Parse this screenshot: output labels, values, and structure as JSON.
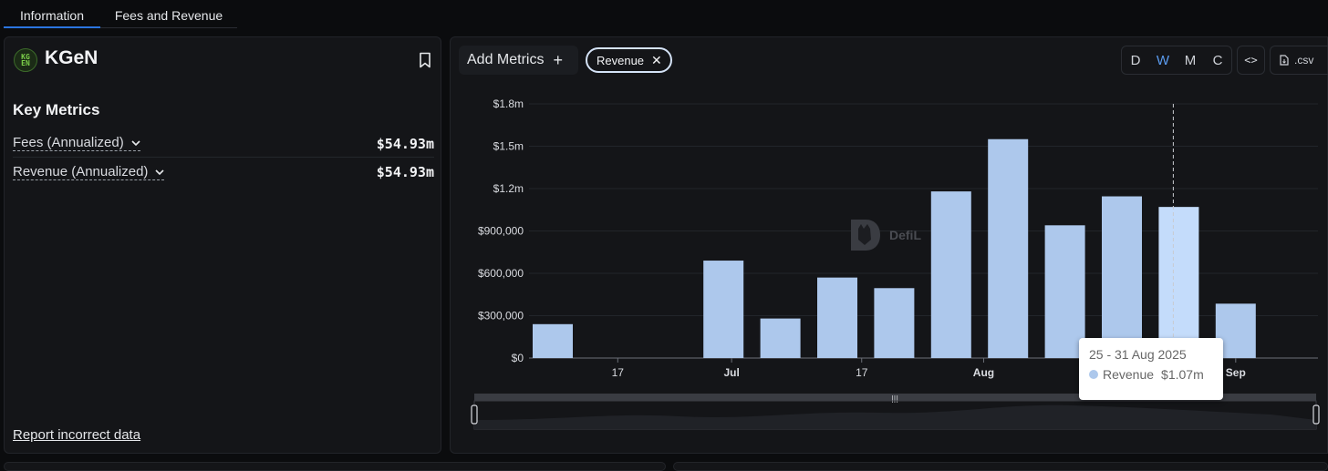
{
  "tabs": [
    {
      "label": "Information",
      "active": true
    },
    {
      "label": "Fees and Revenue",
      "active": false
    }
  ],
  "protocol": {
    "name": "KGeN",
    "logo_text": "KG EN"
  },
  "key_metrics": {
    "title": "Key Metrics",
    "items": [
      {
        "label": "Fees (Annualized)",
        "value": "$54.93m"
      },
      {
        "label": "Revenue (Annualized)",
        "value": "$54.93m"
      }
    ]
  },
  "report_link": "Report incorrect data",
  "toolbar": {
    "add_metrics_label": "Add Metrics",
    "chip_label": "Revenue",
    "periods": [
      "D",
      "W",
      "M",
      "C"
    ],
    "active_period": "W",
    "embed_label": "<>",
    "csv_label": ".csv"
  },
  "watermark": "DefiL",
  "tooltip": {
    "date": "25 - 31 Aug 2025",
    "series": "Revenue",
    "value": "$1.07m"
  },
  "colors": {
    "bar": "#adc8ec",
    "bar_highlight": "#c4dcfb",
    "accent": "#2b75e0"
  },
  "chart_data": {
    "type": "bar",
    "series": [
      {
        "name": "Revenue",
        "x": [
          "2025-06-09",
          "2025-06-16",
          "2025-06-23",
          "2025-06-30",
          "2025-07-07",
          "2025-07-14",
          "2025-07-21",
          "2025-07-28",
          "2025-08-04",
          "2025-08-11",
          "2025-08-18",
          "2025-08-25",
          "2025-09-01"
        ],
        "values": [
          240000,
          0,
          0,
          690000,
          280000,
          570000,
          495000,
          1180000,
          1550000,
          940000,
          1145000,
          1070000,
          385000
        ]
      }
    ],
    "highlight_index": 11,
    "ylim": [
      0,
      1800000
    ],
    "yticks": [
      {
        "value": 0,
        "label": "$0"
      },
      {
        "value": 300000,
        "label": "$300,000"
      },
      {
        "value": 600000,
        "label": "$600,000"
      },
      {
        "value": 900000,
        "label": "$900,000"
      },
      {
        "value": 1200000,
        "label": "$1.2m"
      },
      {
        "value": 1500000,
        "label": "$1.5m"
      },
      {
        "value": 1800000,
        "label": "$1.8m"
      }
    ],
    "xticks": [
      {
        "date": "2025-06-17",
        "label": "17",
        "bold": false
      },
      {
        "date": "2025-07-01",
        "label": "Jul",
        "bold": true
      },
      {
        "date": "2025-07-17",
        "label": "17",
        "bold": false
      },
      {
        "date": "2025-08-01",
        "label": "Aug",
        "bold": true
      },
      {
        "date": "2025-09-01",
        "label": "Sep",
        "bold": true
      }
    ],
    "grid": true,
    "legend": "none"
  }
}
